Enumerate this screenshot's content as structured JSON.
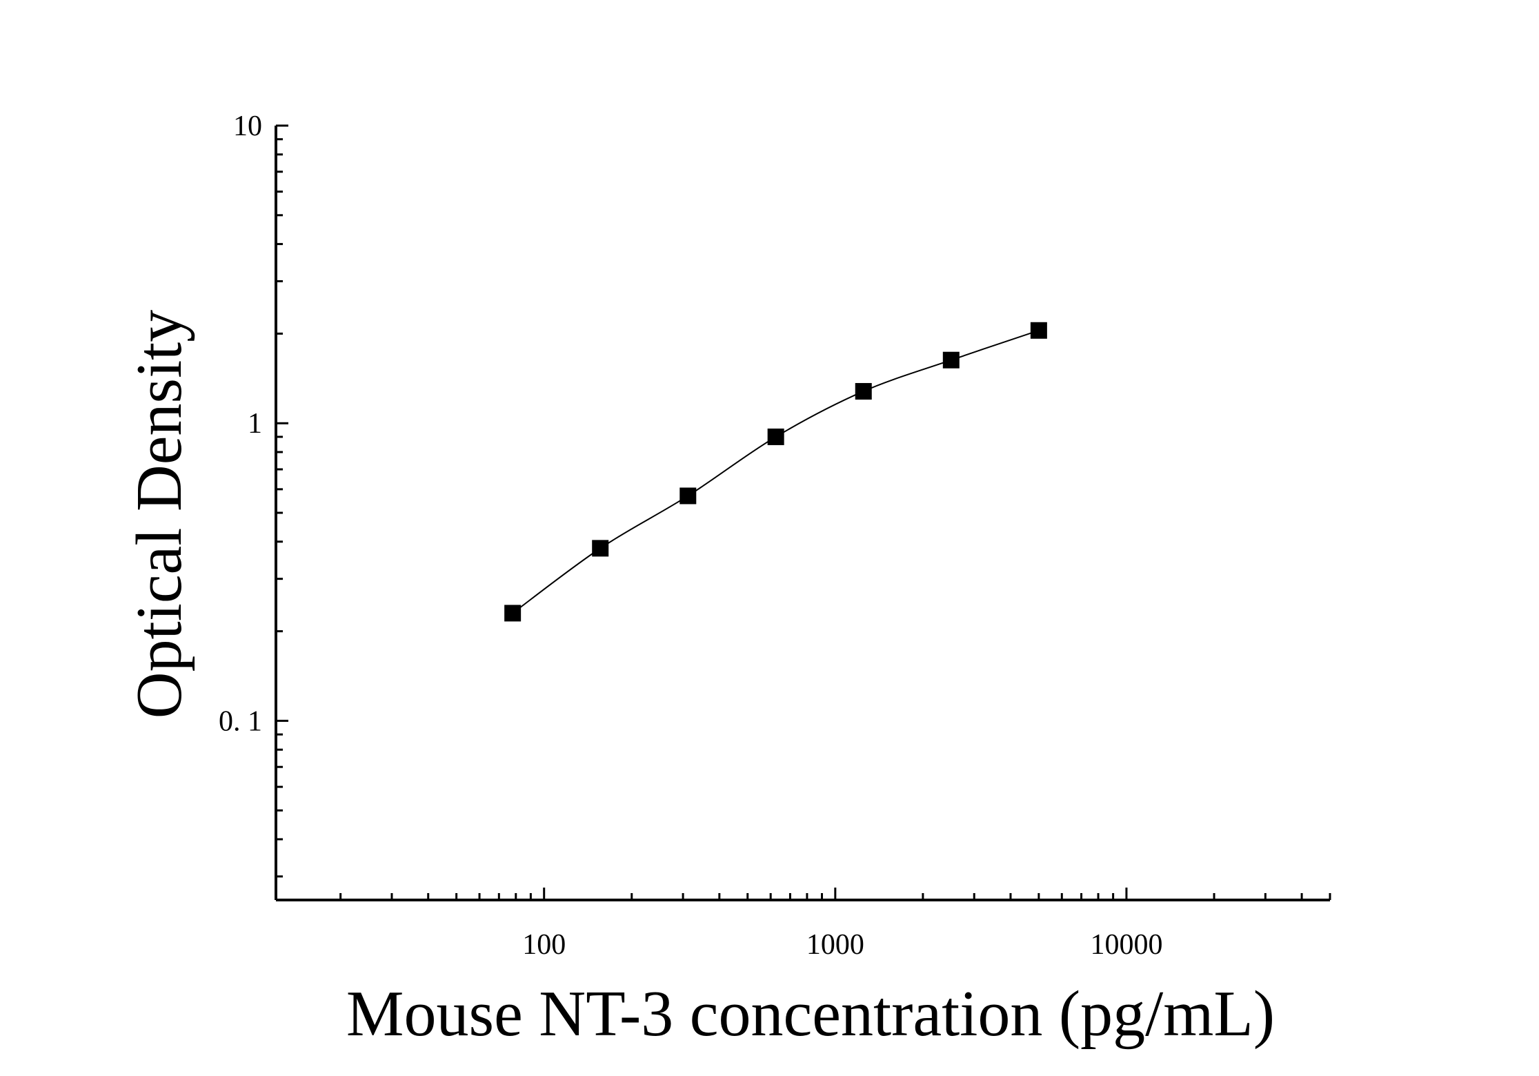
{
  "chart_data": {
    "type": "scatter",
    "title": "",
    "xlabel": "Mouse NT-3 concentration (pg/mL)",
    "ylabel": "Optical Density",
    "xscale": "log",
    "yscale": "log",
    "xlim": [
      12,
      50000
    ],
    "ylim": [
      0.025,
      10
    ],
    "x_ticks": [
      100,
      1000,
      10000
    ],
    "x_tick_labels": [
      "100",
      "1000",
      "10000"
    ],
    "y_ticks": [
      0.1,
      1,
      10
    ],
    "y_tick_labels": [
      "0. 1",
      "1",
      "10"
    ],
    "grid": false,
    "legend": "none",
    "marker": "square",
    "color": "#000000",
    "series": [
      {
        "x": [
          78,
          156,
          312,
          625,
          1250,
          2500,
          5000
        ],
        "y": [
          0.23,
          0.38,
          0.57,
          0.9,
          1.28,
          1.63,
          2.05
        ],
        "fit_line": true
      }
    ]
  }
}
